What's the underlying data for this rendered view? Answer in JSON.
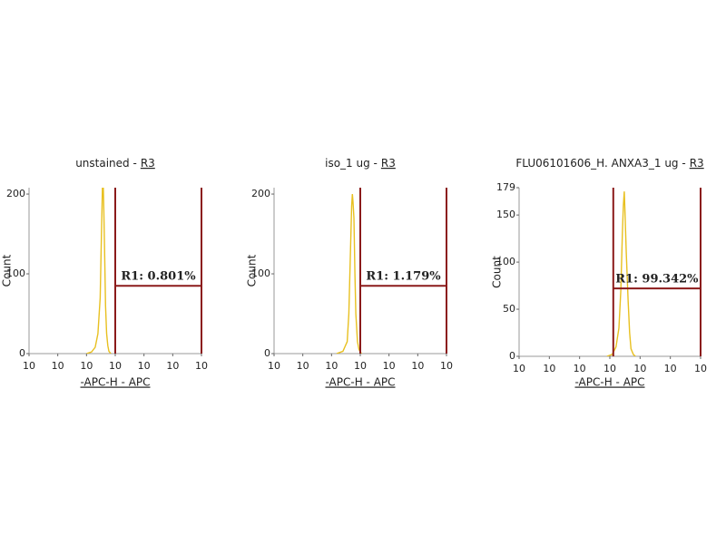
{
  "chart_data": [
    {
      "type": "line",
      "title": "unstained -",
      "title_link": "R3",
      "xlabel": "-APC-H - APC",
      "ylabel": "Count",
      "log_x": true,
      "xlim": [
        0.1,
        100000
      ],
      "xticks": [
        {
          "value": 0.1,
          "label": "10"
        },
        {
          "value": 1,
          "label": "10"
        },
        {
          "value": 10,
          "label": "10"
        },
        {
          "value": 100,
          "label": "10"
        },
        {
          "value": 1000,
          "label": "10"
        },
        {
          "value": 10000,
          "label": "10"
        },
        {
          "value": 100000,
          "label": "10"
        }
      ],
      "ylim": [
        0,
        208
      ],
      "yticks": [
        0,
        100,
        200
      ],
      "x": [
        10,
        15,
        20,
        25,
        30,
        33,
        36,
        38,
        40,
        43,
        46,
        50,
        55,
        60,
        70
      ],
      "series": [
        {
          "color": "#e8c020",
          "values": [
            0,
            2,
            8,
            25,
            70,
            150,
            210,
            215,
            180,
            120,
            60,
            25,
            10,
            3,
            0
          ]
        }
      ],
      "gate": {
        "x": [
          100,
          100000
        ],
        "level": 85,
        "label": "R1: 0.801%",
        "color": "#8b1a1a"
      }
    },
    {
      "type": "line",
      "title": "iso_1 ug -",
      "title_link": "R3",
      "xlabel": "-APC-H - APC",
      "ylabel": "Count",
      "log_x": true,
      "xlim": [
        0.1,
        100000
      ],
      "xticks": [
        {
          "value": 0.1,
          "label": "10"
        },
        {
          "value": 1,
          "label": "10"
        },
        {
          "value": 10,
          "label": "10"
        },
        {
          "value": 100,
          "label": "10"
        },
        {
          "value": 1000,
          "label": "10"
        },
        {
          "value": 10000,
          "label": "10"
        },
        {
          "value": 100000,
          "label": "10"
        }
      ],
      "ylim": [
        0,
        208
      ],
      "yticks": [
        0,
        100,
        200
      ],
      "x": [
        15,
        25,
        35,
        40,
        45,
        50,
        53,
        56,
        60,
        65,
        70,
        80,
        90,
        110
      ],
      "series": [
        {
          "color": "#e8c020",
          "values": [
            0,
            3,
            15,
            50,
            120,
            185,
            200,
            190,
            170,
            100,
            50,
            15,
            5,
            0
          ]
        }
      ],
      "gate": {
        "x": [
          100,
          100000
        ],
        "level": 85,
        "label": "R1: 1.179%",
        "color": "#8b1a1a"
      }
    },
    {
      "type": "line",
      "title": "FLU06101606_H. ANXA3_1 ug -",
      "title_link": "R3",
      "xlabel": "-APC-H - APC",
      "ylabel": "Count",
      "log_x": true,
      "xlim": [
        0.1,
        100000
      ],
      "xticks": [
        {
          "value": 0.1,
          "label": "10"
        },
        {
          "value": 1,
          "label": "10"
        },
        {
          "value": 10,
          "label": "10"
        },
        {
          "value": 100,
          "label": "10"
        },
        {
          "value": 1000,
          "label": "10"
        },
        {
          "value": 10000,
          "label": "10"
        },
        {
          "value": 100000,
          "label": "10"
        }
      ],
      "ylim": [
        0,
        179
      ],
      "yticks": [
        0,
        50,
        100,
        150,
        179
      ],
      "x": [
        80,
        120,
        160,
        200,
        230,
        260,
        280,
        300,
        320,
        350,
        400,
        450,
        500,
        600,
        700
      ],
      "series": [
        {
          "color": "#e8c020",
          "values": [
            0,
            2,
            10,
            30,
            70,
            130,
            160,
            175,
            150,
            110,
            60,
            25,
            8,
            2,
            0
          ]
        }
      ],
      "gate": {
        "x": [
          130,
          100000
        ],
        "level": 72,
        "label": "R1: 99.342%",
        "color": "#8b1a1a"
      }
    }
  ]
}
